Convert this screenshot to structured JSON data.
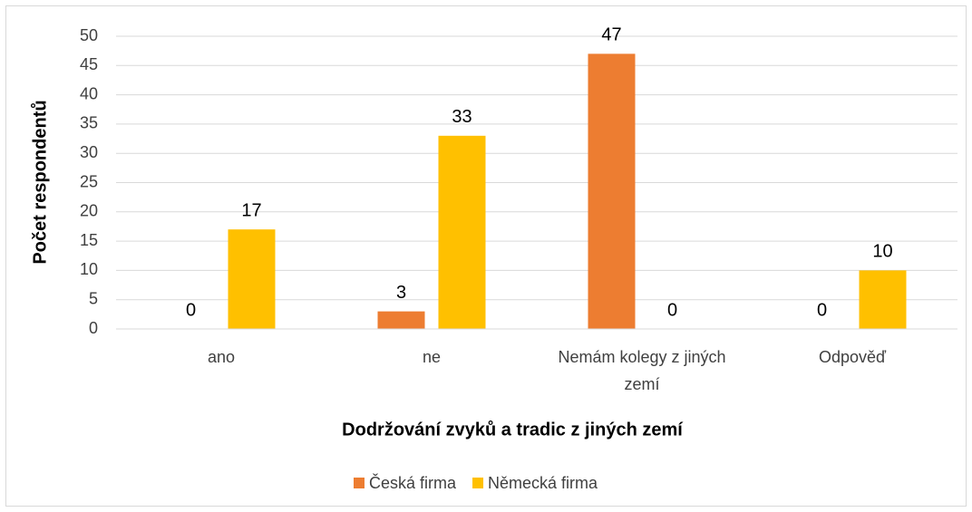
{
  "chart_data": {
    "type": "bar",
    "categories": [
      "ano",
      "ne",
      "Nemám kolegy z jiných zemí",
      "Odpověď"
    ],
    "series": [
      {
        "name": "Česká firma",
        "color": "#ED7D31",
        "values": [
          0,
          3,
          47,
          0
        ]
      },
      {
        "name": "Německá firma",
        "color": "#FFC000",
        "values": [
          17,
          33,
          0,
          10
        ]
      }
    ],
    "xlabel": "Dodržování zvyků a tradic z jiných zemí",
    "ylabel": "Počet respondentů",
    "ylim": [
      0,
      50
    ],
    "yticks": [
      0,
      5,
      10,
      15,
      20,
      25,
      30,
      35,
      40,
      45,
      50
    ],
    "grid": true,
    "legend": "bottom"
  }
}
